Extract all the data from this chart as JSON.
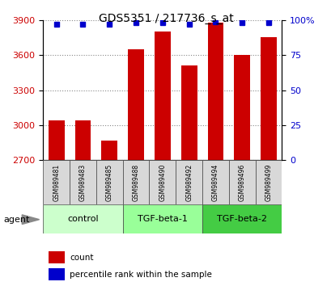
{
  "title": "GDS5351 / 217736_s_at",
  "samples": [
    "GSM989481",
    "GSM989483",
    "GSM989485",
    "GSM989488",
    "GSM989490",
    "GSM989492",
    "GSM989494",
    "GSM989496",
    "GSM989499"
  ],
  "counts": [
    3040,
    3040,
    2870,
    3650,
    3800,
    3510,
    3880,
    3600,
    3750
  ],
  "percentile_ranks": [
    97,
    97,
    97,
    98,
    98,
    97,
    99,
    98,
    98
  ],
  "groups": [
    {
      "label": "control",
      "start": 0,
      "end": 3,
      "color": "#ccffcc"
    },
    {
      "label": "TGF-beta-1",
      "start": 3,
      "end": 6,
      "color": "#99ff99"
    },
    {
      "label": "TGF-beta-2",
      "start": 6,
      "end": 9,
      "color": "#44cc44"
    }
  ],
  "bar_color": "#cc0000",
  "dot_color": "#0000cc",
  "ylim_left": [
    2700,
    3900
  ],
  "ylim_right": [
    0,
    100
  ],
  "yticks_left": [
    2700,
    3000,
    3300,
    3600,
    3900
  ],
  "yticks_right": [
    0,
    25,
    50,
    75,
    100
  ],
  "grid_color": "#888888",
  "background_color": "#ffffff",
  "bar_width": 0.6,
  "agent_label": "agent",
  "legend_count_label": "count",
  "legend_percentile_label": "percentile rank within the sample"
}
